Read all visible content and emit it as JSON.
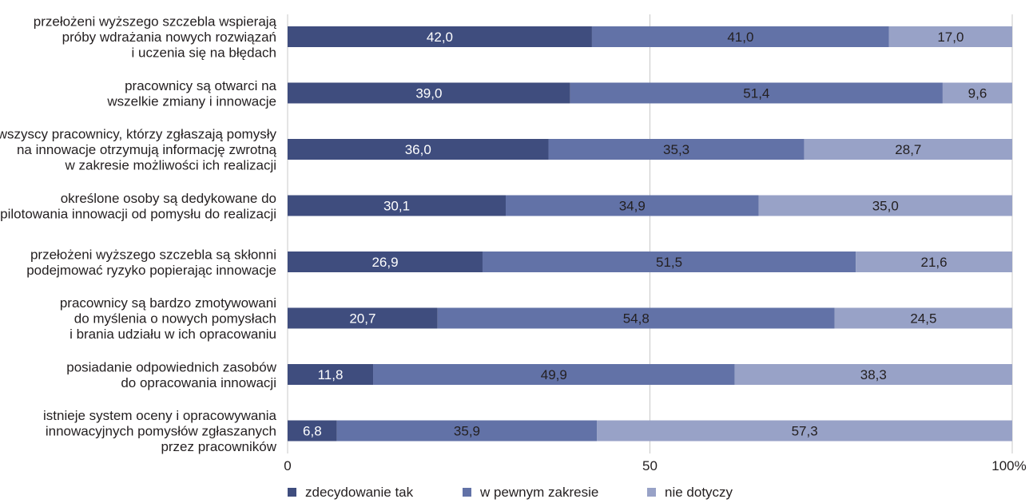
{
  "chart_data": {
    "type": "bar",
    "orientation": "horizontal",
    "stacked": true,
    "categories": [
      "przełożeni wyższego szczebla wspierają próby wdrażania nowych rozwiązań i uczenia się na błędach",
      "pracownicy są otwarci na wszelkie zmiany i innowacje",
      "wszyscy pracownicy, którzy zgłaszają pomysły na innowacje otrzymują informację zwrotną w zakresie możliwości ich realizacji",
      "określone osoby są dedykowane do pilotowania innowacji od pomysłu do realizacji",
      "przełożeni wyższego szczebla są skłonni podejmować ryzyko popierając innowacje",
      "pracownicy są bardzo zmotywowani do myślenia o nowych pomysłach i brania udziału w ich opracowaniu",
      "posiadanie odpowiednich zasobów do opracowania innowacji",
      "istnieje system oceny i opracowywania innowacyjnych pomysłów zgłaszanych przez pracowników"
    ],
    "category_lines": [
      [
        "przełożeni wyższego szczebla wspierają",
        "próby wdrażania nowych rozwiązań",
        "i uczenia się na błędach"
      ],
      [
        "pracownicy są otwarci na",
        "wszelkie zmiany i innowacje"
      ],
      [
        "wszyscy pracownicy, którzy zgłaszają pomysły",
        "na innowacje otrzymują informację zwrotną",
        "w zakresie możliwości ich realizacji"
      ],
      [
        "określone osoby są dedykowane do",
        "pilotowania innowacji od pomysłu do realizacji"
      ],
      [
        "przełożeni wyższego szczebla są skłonni",
        "podejmować ryzyko popierając innowacje"
      ],
      [
        "pracownicy są bardzo zmotywowani",
        "do myślenia o nowych pomysłach",
        "i brania udziału w ich opracowaniu"
      ],
      [
        "posiadanie odpowiednich zasobów",
        "do opracowania innowacji"
      ],
      [
        "istnieje system oceny i opracowywania",
        "innowacyjnych pomysłów zgłaszanych",
        "przez pracowników"
      ]
    ],
    "series": [
      {
        "name": "zdecydowanie tak",
        "color": "#3f4d7e",
        "label_color": "#ffffff",
        "values": [
          42.0,
          39.0,
          36.0,
          30.1,
          26.9,
          20.7,
          11.8,
          6.8
        ],
        "labels": [
          "42,0",
          "39,0",
          "36,0",
          "30,1",
          "26,9",
          "20,7",
          "11,8",
          "6,8"
        ]
      },
      {
        "name": "w pewnym zakresie",
        "color": "#6272a7",
        "label_color": "#231f20",
        "values": [
          41.0,
          51.4,
          35.3,
          34.9,
          51.5,
          54.8,
          49.9,
          35.9
        ],
        "labels": [
          "41,0",
          "51,4",
          "35,3",
          "34,9",
          "51,5",
          "54,8",
          "49,9",
          "35,9"
        ]
      },
      {
        "name": "nie dotyczy",
        "color": "#98a2c7",
        "label_color": "#231f20",
        "values": [
          17.0,
          9.6,
          28.7,
          35.0,
          21.6,
          24.5,
          38.3,
          57.3
        ],
        "labels": [
          "17,0",
          "9,6",
          "28,7",
          "35,0",
          "21,6",
          "24,5",
          "38,3",
          "57,3"
        ]
      }
    ],
    "xlim": [
      0,
      100
    ],
    "xticks": [
      0,
      50,
      100
    ],
    "xtick_labels": [
      "0",
      "50",
      "100%"
    ],
    "grid": true,
    "legend_position": "bottom-left"
  }
}
